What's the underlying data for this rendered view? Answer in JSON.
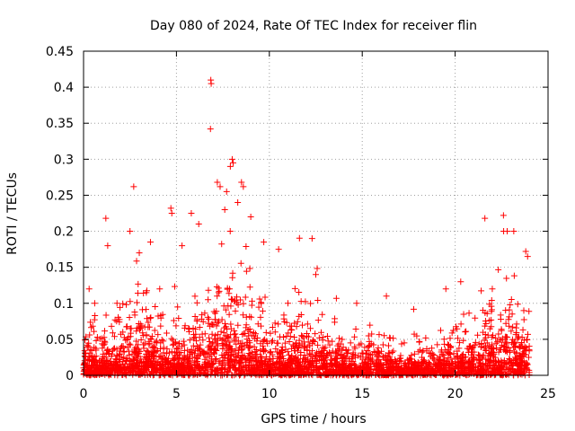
{
  "chart_data": {
    "type": "scatter",
    "title": "Day 080 of 2024, Rate Of TEC Index for receiver flin",
    "xlabel": "GPS time / hours",
    "ylabel": "ROTI / TECUs",
    "xlim": [
      0,
      25
    ],
    "ylim": [
      0,
      0.45
    ],
    "x_ticks": [
      0,
      5,
      10,
      15,
      20,
      25
    ],
    "y_ticks": [
      0,
      0.05,
      0.1,
      0.15,
      0.2,
      0.25,
      0.3,
      0.35,
      0.4,
      0.45
    ],
    "x_tick_labels": [
      "0",
      "5",
      "10",
      "15",
      "20",
      "25"
    ],
    "y_tick_labels": [
      "0",
      "0.05",
      "0.1",
      "0.15",
      "0.2",
      "0.25",
      "0.3",
      "0.35",
      "0.4",
      "0.45"
    ],
    "grid": true,
    "marker": "+",
    "color": "#ff0000",
    "series": [
      {
        "name": "ROTI",
        "points": [
          [
            6.85,
            0.41
          ],
          [
            6.87,
            0.405
          ],
          [
            6.83,
            0.342
          ],
          [
            2.7,
            0.262
          ],
          [
            1.2,
            0.218
          ],
          [
            4.7,
            0.232
          ],
          [
            4.75,
            0.225
          ],
          [
            5.8,
            0.225
          ],
          [
            7.2,
            0.268
          ],
          [
            7.35,
            0.262
          ],
          [
            7.7,
            0.255
          ],
          [
            7.9,
            0.29
          ],
          [
            8.0,
            0.3
          ],
          [
            8.05,
            0.295
          ],
          [
            8.5,
            0.268
          ],
          [
            8.6,
            0.262
          ],
          [
            9.0,
            0.22
          ],
          [
            9.7,
            0.185
          ],
          [
            10.5,
            0.175
          ],
          [
            12.3,
            0.19
          ],
          [
            12.5,
            0.14
          ],
          [
            21.6,
            0.218
          ],
          [
            22.6,
            0.222
          ],
          [
            22.8,
            0.2
          ],
          [
            23.8,
            0.172
          ],
          [
            23.9,
            0.165
          ],
          [
            1.3,
            0.18
          ],
          [
            2.5,
            0.2
          ],
          [
            3.0,
            0.17
          ],
          [
            3.6,
            0.185
          ],
          [
            5.3,
            0.18
          ],
          [
            6.2,
            0.21
          ],
          [
            7.6,
            0.23
          ],
          [
            8.3,
            0.24
          ],
          [
            0.3,
            0.12
          ],
          [
            0.6,
            0.1
          ],
          [
            1.8,
            0.1
          ],
          [
            4.1,
            0.12
          ],
          [
            11.0,
            0.1
          ],
          [
            14.7,
            0.1
          ],
          [
            16.3,
            0.11
          ],
          [
            19.5,
            0.12
          ],
          [
            20.3,
            0.13
          ],
          [
            22.0,
            0.12
          ]
        ]
      }
    ]
  },
  "color": "#ff0000"
}
